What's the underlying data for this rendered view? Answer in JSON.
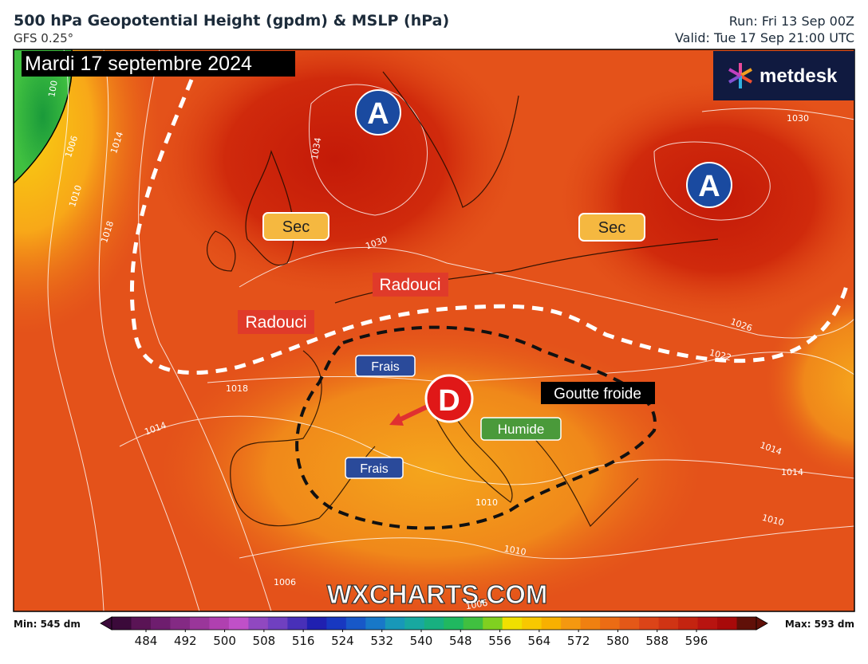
{
  "header": {
    "title": "500 hPa Geopotential Height (gpdm) & MSLP (hPa)",
    "model": "GFS 0.25°",
    "run": "Run: Fri 13 Sep 00Z",
    "valid": "Valid: Tue 17 Sep 21:00 UTC"
  },
  "map": {
    "date": "Mardi 17 septembre 2024",
    "brand": "metdesk",
    "watermark": "WXCHARTS.COM",
    "highs": [
      "A",
      "A"
    ],
    "low": "D",
    "labels": {
      "sec": [
        "Sec",
        "Sec"
      ],
      "radouci": [
        "Radouci",
        "Radouci"
      ],
      "frais": [
        "Frais",
        "Frais"
      ],
      "humide": "Humide",
      "goutte": "Goutte froide"
    },
    "isobars": [
      "100",
      "1006",
      "1014",
      "1010",
      "1018",
      "1034",
      "1030",
      "1030",
      "1026",
      "1022",
      "1018",
      "1014",
      "1014",
      "1014",
      "1010",
      "1010",
      "1010",
      "1006",
      "1006"
    ]
  },
  "colorbar": {
    "min": "Min: 545 dm",
    "max": "Max: 593 dm",
    "ticks": [
      484,
      492,
      500,
      508,
      516,
      524,
      532,
      540,
      548,
      556,
      564,
      572,
      580,
      588,
      596
    ],
    "colors": [
      "#3b0a3a",
      "#5a1455",
      "#6e1d6e",
      "#842a84",
      "#9a369a",
      "#b040b0",
      "#c050c8",
      "#9048c0",
      "#7040c0",
      "#4830b8",
      "#2020b0",
      "#1838c0",
      "#1858c8",
      "#1878c8",
      "#1898b8",
      "#18a8a0",
      "#18b080",
      "#20b860",
      "#40c040",
      "#80d020",
      "#f0e000",
      "#f8c800",
      "#f8b000",
      "#f49810",
      "#f08010",
      "#ec6c14",
      "#e45818",
      "#dc4418",
      "#d03414",
      "#c42410",
      "#b81410",
      "#a80a0a",
      "#601008"
    ]
  }
}
